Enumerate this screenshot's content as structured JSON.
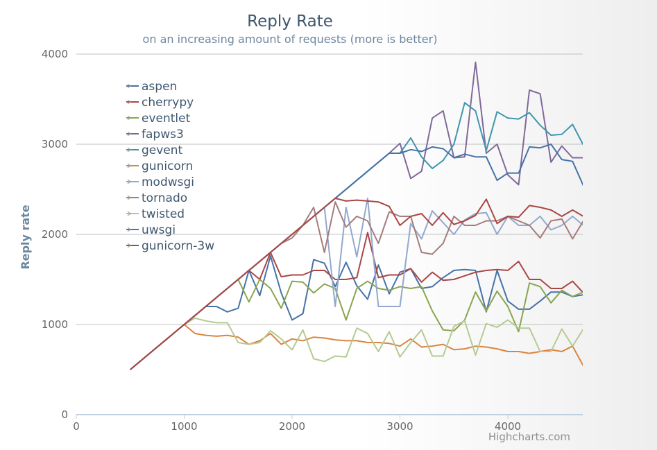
{
  "chart_data": {
    "type": "line",
    "title": "Reply Rate",
    "subtitle": "on an increasing amount of requests (more is better)",
    "xlabel": "",
    "ylabel": "Reply rate",
    "xlim": [
      0,
      4700
    ],
    "ylim": [
      0,
      4000
    ],
    "xticks": [
      0,
      1000,
      2000,
      3000,
      4000
    ],
    "yticks": [
      0,
      1000,
      2000,
      3000,
      4000
    ],
    "grid": true,
    "legend": "top-left",
    "credit": "Highcharts.com",
    "x": [
      500,
      600,
      700,
      800,
      900,
      1000,
      1100,
      1200,
      1300,
      1400,
      1500,
      1600,
      1700,
      1800,
      1900,
      2000,
      2100,
      2200,
      2300,
      2400,
      2500,
      2600,
      2700,
      2800,
      2900,
      3000,
      3100,
      3200,
      3300,
      3400,
      3500,
      3600,
      3700,
      3800,
      3900,
      4000,
      4100,
      4200,
      4300,
      4400,
      4500,
      4600,
      4700
    ],
    "series": [
      {
        "name": "aspen",
        "color": "#4572a7",
        "values": [
          500,
          600,
          700,
          800,
          900,
          1000,
          1100,
          1200,
          1200,
          1140,
          1180,
          1600,
          1320,
          1760,
          1350,
          1050,
          1120,
          1720,
          1680,
          1420,
          1690,
          1430,
          1280,
          1660,
          1340,
          1580,
          1620,
          1400,
          1420,
          1520,
          1600,
          1610,
          1600,
          1140,
          1600,
          1260,
          1170,
          1170,
          1260,
          1360,
          1360,
          1310,
          1330
        ]
      },
      {
        "name": "cherrypy",
        "color": "#aa4643",
        "values": [
          500,
          600,
          700,
          800,
          900,
          1000,
          1100,
          1200,
          1300,
          1400,
          1500,
          1600,
          1500,
          1800,
          1530,
          1550,
          1550,
          1600,
          1600,
          1500,
          1500,
          1520,
          2020,
          1520,
          1550,
          1550,
          1620,
          1470,
          1580,
          1490,
          1500,
          1540,
          1580,
          1600,
          1610,
          1600,
          1700,
          1500,
          1500,
          1400,
          1400,
          1480,
          1350
        ]
      },
      {
        "name": "eventlet",
        "color": "#89a54e",
        "values": [
          500,
          600,
          700,
          800,
          900,
          1000,
          1100,
          1200,
          1300,
          1400,
          1500,
          1250,
          1500,
          1400,
          1180,
          1480,
          1470,
          1350,
          1450,
          1400,
          1050,
          1400,
          1480,
          1400,
          1380,
          1420,
          1400,
          1420,
          1150,
          940,
          930,
          1050,
          1360,
          1150,
          1370,
          1200,
          920,
          1460,
          1420,
          1240,
          1380,
          1310,
          1360
        ]
      },
      {
        "name": "fapws3",
        "color": "#80699b",
        "values": [
          500,
          600,
          700,
          800,
          900,
          1000,
          1100,
          1200,
          1300,
          1400,
          1500,
          1600,
          1700,
          1800,
          1900,
          2000,
          2100,
          2200,
          2300,
          2400,
          2500,
          2600,
          2700,
          2800,
          2900,
          3010,
          2620,
          2700,
          3290,
          3370,
          2850,
          2860,
          3910,
          2900,
          3000,
          2660,
          2550,
          3600,
          3560,
          2800,
          2980,
          2850,
          2850
        ]
      },
      {
        "name": "gevent",
        "color": "#3d96ae",
        "values": [
          500,
          600,
          700,
          800,
          900,
          1000,
          1100,
          1200,
          1300,
          1400,
          1500,
          1600,
          1700,
          1800,
          1900,
          2000,
          2100,
          2200,
          2300,
          2400,
          2500,
          2600,
          2700,
          2800,
          2900,
          2900,
          3070,
          2860,
          2730,
          2820,
          3000,
          3460,
          3370,
          2930,
          3360,
          3290,
          3280,
          3350,
          3210,
          3100,
          3110,
          3220,
          2990
        ]
      },
      {
        "name": "gunicorn",
        "color": "#db843d",
        "values": [
          500,
          600,
          700,
          800,
          900,
          1000,
          900,
          880,
          870,
          880,
          860,
          780,
          820,
          900,
          780,
          840,
          820,
          860,
          850,
          830,
          820,
          820,
          800,
          800,
          790,
          760,
          840,
          750,
          760,
          780,
          720,
          730,
          760,
          750,
          730,
          700,
          700,
          680,
          700,
          720,
          700,
          760,
          540
        ]
      },
      {
        "name": "modwsgi",
        "color": "#92a8cd",
        "values": [
          500,
          600,
          700,
          800,
          900,
          1000,
          1100,
          1200,
          1300,
          1400,
          1500,
          1600,
          1700,
          1800,
          1900,
          2000,
          2100,
          2200,
          2300,
          1200,
          2300,
          1750,
          2400,
          1200,
          1200,
          1200,
          2120,
          1950,
          2260,
          2130,
          2000,
          2160,
          2230,
          2240,
          2000,
          2200,
          2100,
          2100,
          2200,
          2050,
          2100,
          2200,
          2100
        ]
      },
      {
        "name": "tornado",
        "color": "#a47d7c",
        "values": [
          500,
          600,
          700,
          800,
          900,
          1000,
          1100,
          1200,
          1300,
          1400,
          1500,
          1600,
          1700,
          1800,
          1900,
          1960,
          2100,
          2300,
          1800,
          2360,
          2080,
          2200,
          2150,
          1900,
          2250,
          2200,
          2200,
          1800,
          1780,
          1900,
          2200,
          2100,
          2100,
          2150,
          2150,
          2200,
          2150,
          2100,
          1960,
          2150,
          2170,
          1950,
          2150
        ]
      },
      {
        "name": "twisted",
        "color": "#b5ca92",
        "values": [
          500,
          600,
          700,
          800,
          900,
          1000,
          1070,
          1040,
          1020,
          1020,
          800,
          780,
          800,
          930,
          840,
          720,
          940,
          620,
          590,
          650,
          640,
          960,
          900,
          700,
          920,
          640,
          800,
          940,
          650,
          650,
          980,
          1040,
          660,
          1010,
          970,
          1050,
          960,
          960,
          700,
          700,
          950,
          760,
          950
        ]
      },
      {
        "name": "uwsgi",
        "color": "#4572a7",
        "values": [
          500,
          600,
          700,
          800,
          900,
          1000,
          1100,
          1200,
          1300,
          1400,
          1500,
          1600,
          1700,
          1800,
          1900,
          2000,
          2100,
          2200,
          2300,
          2400,
          2500,
          2600,
          2700,
          2800,
          2900,
          2900,
          2940,
          2920,
          2970,
          2950,
          2850,
          2890,
          2860,
          2860,
          2600,
          2680,
          2680,
          2970,
          2960,
          3000,
          2830,
          2810,
          2540
        ]
      },
      {
        "name": "gunicorn-3w",
        "color": "#aa4643",
        "values": [
          500,
          600,
          700,
          800,
          900,
          1000,
          1100,
          1200,
          1300,
          1400,
          1500,
          1600,
          1700,
          1800,
          1900,
          2000,
          2100,
          2200,
          2300,
          2400,
          2370,
          2380,
          2370,
          2360,
          2310,
          2100,
          2200,
          2230,
          2100,
          2240,
          2110,
          2150,
          2210,
          2390,
          2120,
          2200,
          2190,
          2320,
          2300,
          2270,
          2200,
          2270,
          2200
        ]
      }
    ]
  }
}
